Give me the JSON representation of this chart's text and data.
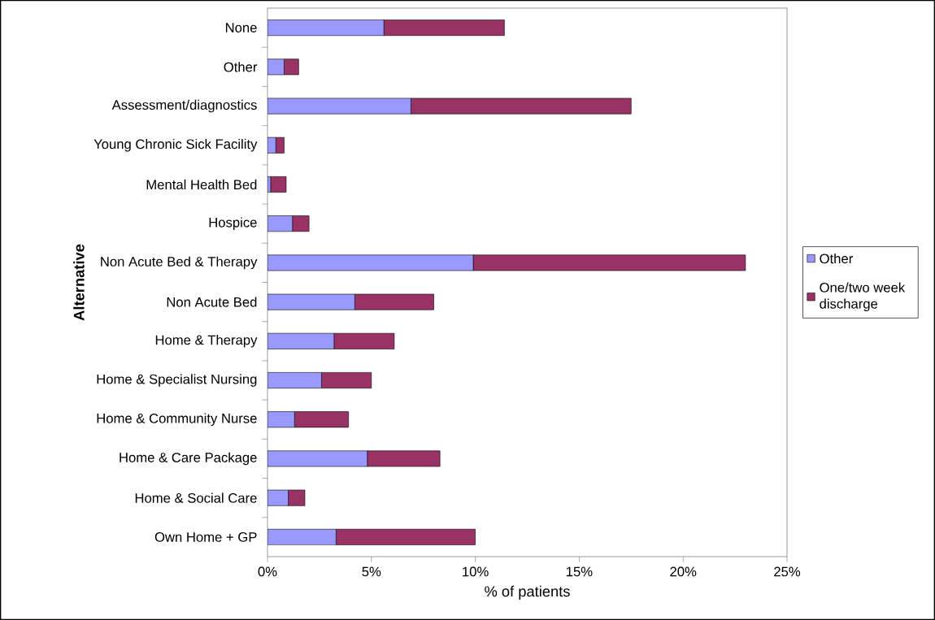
{
  "chart_data": {
    "type": "bar",
    "orientation": "horizontal",
    "stacked": true,
    "xlabel": "% of patients",
    "ylabel": "Alternative",
    "categories": [
      "None",
      "Other",
      "Assessment/diagnostics",
      "Young Chronic Sick Facility",
      "Mental Health Bed",
      "Hospice",
      "Non Acute Bed & Therapy",
      "Non Acute Bed",
      "Home & Therapy",
      "Home & Specialist Nursing",
      "Home & Community Nurse",
      "Home & Care Package",
      "Home & Social Care",
      "Own Home + GP"
    ],
    "series": [
      {
        "name": "Other",
        "color": "#9999ff",
        "values": [
          5.6,
          0.8,
          6.9,
          0.4,
          0.15,
          1.2,
          9.9,
          4.2,
          3.2,
          2.6,
          1.3,
          4.8,
          1.0,
          3.3
        ]
      },
      {
        "name": "One/two week discharge",
        "color": "#993366",
        "values": [
          5.8,
          0.7,
          10.6,
          0.4,
          0.75,
          0.8,
          13.1,
          3.8,
          2.9,
          2.4,
          2.6,
          3.5,
          0.8,
          6.7
        ]
      }
    ],
    "xlim": [
      0,
      25
    ],
    "xticks": [
      {
        "value": 0,
        "label": "0%"
      },
      {
        "value": 5,
        "label": "5%"
      },
      {
        "value": 10,
        "label": "10%"
      },
      {
        "value": 15,
        "label": "15%"
      },
      {
        "value": 20,
        "label": "20%"
      },
      {
        "value": 25,
        "label": "25%"
      }
    ],
    "legend": "right"
  }
}
